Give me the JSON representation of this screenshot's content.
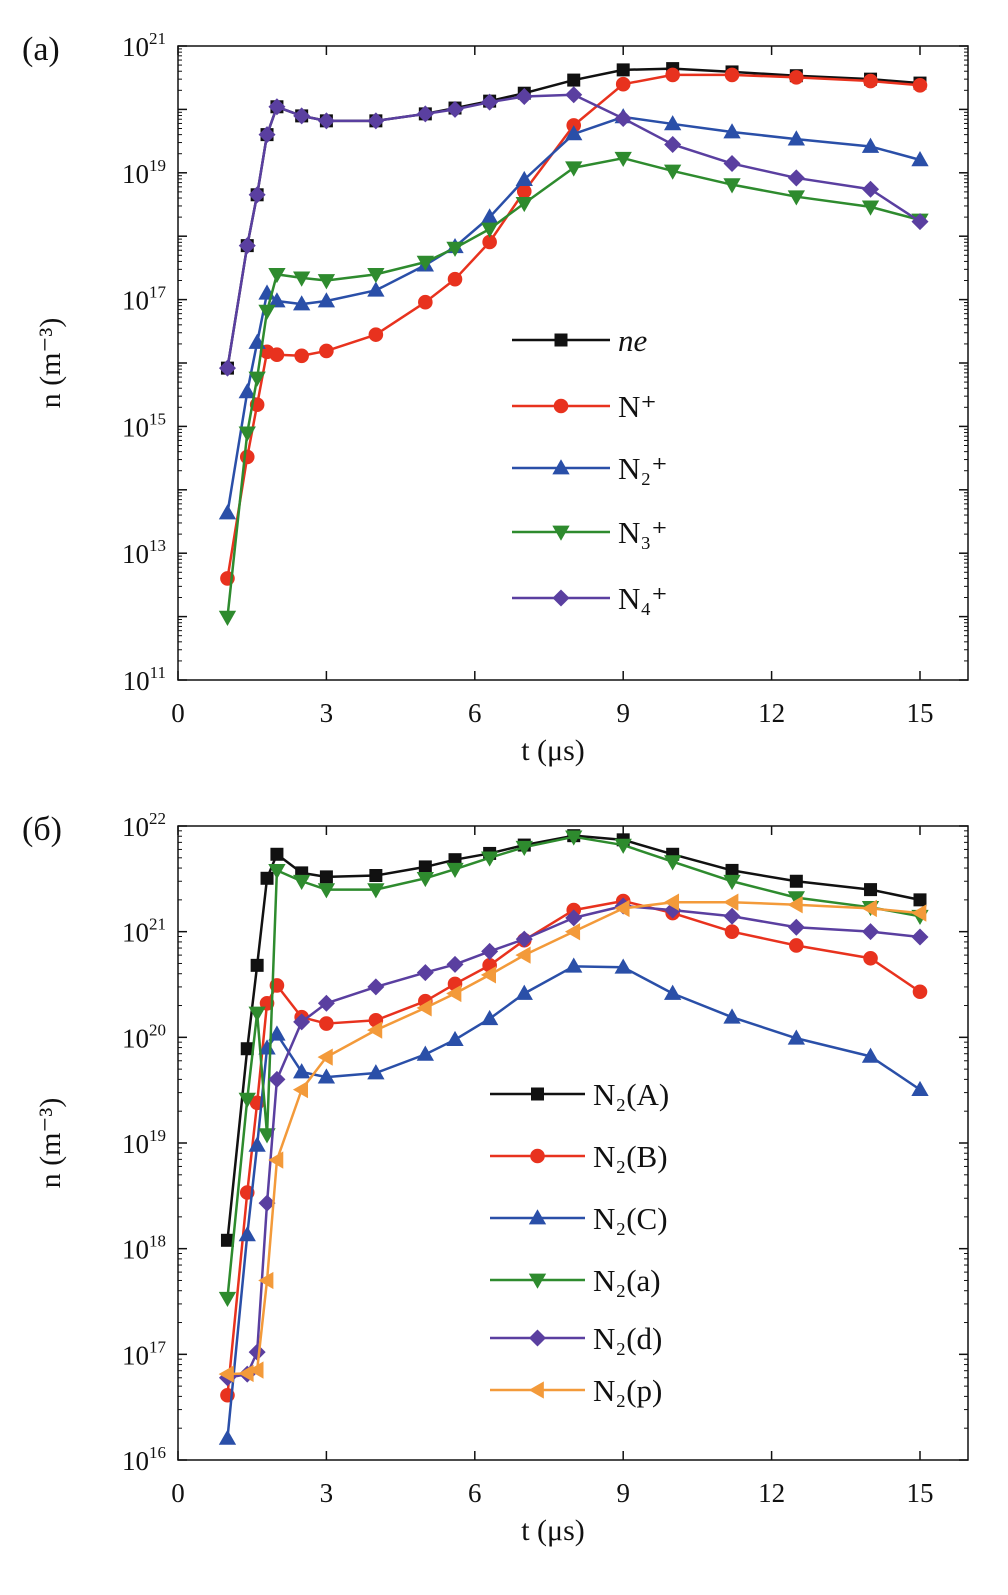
{
  "chart_data": [
    {
      "type": "line",
      "panel_label": "(a)",
      "xlabel": "t (μs)",
      "ylabel": "n (m⁻³)",
      "xlim": [
        0,
        16
      ],
      "ylim": [
        100000000000.0,
        1e+21
      ],
      "yscale": "log",
      "x_ticks": [
        0,
        3,
        6,
        9,
        12,
        15
      ],
      "y_tick_exponents": [
        21,
        19,
        17,
        15,
        13,
        11
      ],
      "legend_placement": "center",
      "x": [
        1,
        1.4,
        1.6,
        1.8,
        2,
        2.5,
        3,
        4,
        5,
        5.6,
        6.3,
        7,
        8,
        9,
        10,
        11.2,
        12.5,
        14,
        15
      ],
      "series": [
        {
          "name": "ne",
          "color": "#111111",
          "marker": "square",
          "values": [
            8300000000000000.0,
            7.1e+17,
            4.5e+18,
            4e+19,
            1.1e+20,
            7.9e+19,
            6.6e+19,
            6.6e+19,
            8.5e+19,
            1.05e+20,
            1.35e+20,
            1.8e+20,
            2.9e+20,
            4.2e+20,
            4.4e+20,
            3.9e+20,
            3.4e+20,
            3e+20,
            2.6e+20
          ]
        },
        {
          "name": "N⁺",
          "color": "#e8321e",
          "marker": "circle",
          "values": [
            4000000000000.0,
            330000000000000.0,
            2200000000000000.0,
            1.5e+16,
            1.35e+16,
            1.3e+16,
            1.55e+16,
            2.8e+16,
            9.1e+16,
            2.1e+17,
            8.1e+17,
            5.1e+18,
            5.6e+19,
            2.5e+20,
            3.5e+20,
            3.5e+20,
            3.2e+20,
            2.8e+20,
            2.4e+20
          ]
        },
        {
          "name": "N₂⁺",
          "color": "#2a4fa8",
          "marker": "triangle-up",
          "values": [
            43000000000000.0,
            3500000000000000.0,
            2.1e+16,
            1.26e+17,
            9.5e+16,
            8.5e+16,
            9.5e+16,
            1.4e+17,
            3.5e+17,
            6.8e+17,
            2e+18,
            7.8e+18,
            4.1e+19,
            7.6e+19,
            5.9e+19,
            4.4e+19,
            3.4e+19,
            2.6e+19,
            1.6e+19
          ]
        },
        {
          "name": "N₃⁺",
          "color": "#2e8b2e",
          "marker": "triangle-down",
          "values": [
            980000000000.0,
            790000000000000.0,
            5800000000000000.0,
            6.6e+16,
            2.5e+17,
            2.2e+17,
            2e+17,
            2.5e+17,
            3.9e+17,
            6.5e+17,
            1.3e+18,
            3.3e+18,
            1.2e+19,
            1.7e+19,
            1.07e+19,
            6.5e+18,
            4.2e+18,
            2.9e+18,
            1.8e+18
          ]
        },
        {
          "name": "N₄⁺",
          "color": "#5a3fa0",
          "marker": "diamond",
          "values": [
            8300000000000000.0,
            7.1e+17,
            4.5e+18,
            4e+19,
            1.1e+20,
            7.9e+19,
            6.6e+19,
            6.6e+19,
            8.5e+19,
            1e+20,
            1.3e+20,
            1.6e+20,
            1.7e+20,
            7.2e+19,
            2.8e+19,
            1.4e+19,
            8.3e+18,
            5.5e+18,
            1.7e+18
          ]
        }
      ]
    },
    {
      "type": "line",
      "panel_label": "(б)",
      "xlabel": "t (μs)",
      "ylabel": "n (m⁻³)",
      "xlim": [
        0,
        16
      ],
      "ylim": [
        1e+16,
        1e+22
      ],
      "yscale": "log",
      "x_ticks": [
        0,
        3,
        6,
        9,
        12,
        15
      ],
      "y_tick_exponents": [
        22,
        21,
        20,
        19,
        18,
        17,
        16
      ],
      "legend_placement": "center-right",
      "x": [
        1,
        1.4,
        1.6,
        1.8,
        2,
        2.5,
        3,
        4,
        5,
        5.6,
        6.3,
        7,
        8,
        9,
        10,
        11.2,
        12.5,
        14,
        15
      ],
      "series": [
        {
          "name": "N₂(A)",
          "color": "#111111",
          "marker": "square",
          "values": [
            1.2e+18,
            7.8e+19,
            4.8e+20,
            3.2e+21,
            5.4e+21,
            3.6e+21,
            3.3e+21,
            3.4e+21,
            4.1e+21,
            4.8e+21,
            5.5e+21,
            6.6e+21,
            8.1e+21,
            7.4e+21,
            5.4e+21,
            3.8e+21,
            3e+21,
            2.5e+21,
            2e+21
          ]
        },
        {
          "name": "N₂(B)",
          "color": "#e8321e",
          "marker": "circle",
          "values": [
            4.1e+16,
            3.4e+18,
            2.4e+19,
            2.1e+20,
            3.1e+20,
            1.55e+20,
            1.35e+20,
            1.45e+20,
            2.2e+20,
            3.2e+20,
            4.8e+20,
            8.3e+20,
            1.6e+21,
            1.95e+21,
            1.5e+21,
            1e+21,
            7.4e+20,
            5.6e+20,
            2.7e+20
          ]
        },
        {
          "name": "N₂(C)",
          "color": "#2a4fa8",
          "marker": "triangle-up",
          "values": [
            1.6e+16,
            1.35e+18,
            9.5e+18,
            7.9e+19,
            1.07e+20,
            4.7e+19,
            4.2e+19,
            4.6e+19,
            6.9e+19,
            9.5e+19,
            1.5e+20,
            2.6e+20,
            4.7e+20,
            4.6e+20,
            2.6e+20,
            1.55e+20,
            9.8e+19,
            6.6e+19,
            3.2e+19
          ]
        },
        {
          "name": "N₂(a)",
          "color": "#2e8b2e",
          "marker": "triangle-down",
          "values": [
            3.4e+17,
            2.6e+19,
            1.7e+20,
            1.2e+19,
            3.8e+21,
            3e+21,
            2.5e+21,
            2.5e+21,
            3.2e+21,
            3.9e+21,
            5e+21,
            6.3e+21,
            7.9e+21,
            6.6e+21,
            4.6e+21,
            3e+21,
            2.1e+21,
            1.7e+21,
            1.4e+21
          ]
        },
        {
          "name": "N₂(d)",
          "color": "#5a3fa0",
          "marker": "diamond",
          "values": [
            6e+16,
            6.5e+16,
            1.05e+17,
            2.7e+18,
            4e+19,
            1.4e+20,
            2.1e+20,
            3e+20,
            4.1e+20,
            4.9e+20,
            6.5e+20,
            8.5e+20,
            1.35e+21,
            1.75e+21,
            1.6e+21,
            1.4e+21,
            1.1e+21,
            1e+21,
            8.9e+20
          ]
        },
        {
          "name": "N₂(p)",
          "color": "#f39a3a",
          "marker": "triangle-left",
          "values": [
            6.5e+16,
            6.6e+16,
            7.1e+16,
            5e+17,
            6.9e+18,
            3.2e+19,
            6.5e+19,
            1.17e+20,
            1.9e+20,
            2.6e+20,
            3.9e+20,
            6e+20,
            1e+21,
            1.66e+21,
            1.9e+21,
            1.9e+21,
            1.8e+21,
            1.66e+21,
            1.5e+21
          ]
        }
      ]
    }
  ]
}
